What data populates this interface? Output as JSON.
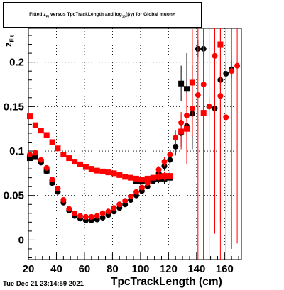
{
  "chart": {
    "title_part1": "Fitted  z",
    "title_sub1": "Pi",
    "title_part2": "  versus  TpcTrackLength and log",
    "title_sub2": "10",
    "title_part3": "(βγ) for Global muon+",
    "ylabel_main": "z",
    "ylabel_sub": "Fit",
    "xlabel": "TpcTrackLength (cm)",
    "timestamp": "Tue Dec 21 23:14:59 2021"
  },
  "chart_data": {
    "type": "scatter",
    "title": "Fitted z_Pi versus TpcTrackLength and log10(βγ) for Global muon+",
    "xlabel": "TpcTrackLength (cm)",
    "ylabel": "z_Fit",
    "xlim": [
      20,
      172
    ],
    "ylim": [
      -0.022,
      0.238
    ],
    "grid": true,
    "x_ticks": [
      20,
      40,
      60,
      80,
      100,
      120,
      140,
      160
    ],
    "y_ticks": [
      0,
      0.05,
      0.1,
      0.15,
      0.2
    ],
    "x_tick_labels": [
      "20",
      "40",
      "60",
      "80",
      "100",
      "120",
      "140",
      "160"
    ],
    "y_tick_labels": [
      "0",
      "0.05",
      "0.1",
      "0.15",
      "0.2"
    ],
    "series": [
      {
        "marker": "circle",
        "color": "#000000",
        "points": [
          [
            21,
            0.093
          ],
          [
            25,
            0.096
          ],
          [
            29,
            0.087
          ],
          [
            33,
            0.077
          ],
          [
            37,
            0.064
          ],
          [
            41,
            0.054
          ],
          [
            45,
            0.042
          ],
          [
            49,
            0.033
          ],
          [
            53,
            0.027
          ],
          [
            57,
            0.024
          ],
          [
            61,
            0.022
          ],
          [
            65,
            0.022
          ],
          [
            69,
            0.023
          ],
          [
            73,
            0.025
          ],
          [
            77,
            0.028
          ],
          [
            81,
            0.032
          ],
          [
            85,
            0.036
          ],
          [
            89,
            0.04
          ],
          [
            93,
            0.045
          ],
          [
            97,
            0.05
          ],
          [
            101,
            0.055
          ],
          [
            105,
            0.06
          ],
          [
            109,
            0.066
          ],
          [
            113,
            0.075
          ],
          [
            117,
            0.083
          ],
          [
            121,
            0.09
          ],
          [
            125,
            0.105
          ],
          [
            129,
            0.12
          ],
          [
            133,
            0.128
          ],
          [
            137,
            0.142
          ],
          [
            141,
            0.215
          ],
          [
            145,
            0.215
          ],
          [
            149,
            0.15
          ],
          [
            153,
            0.148
          ],
          [
            157,
            0.18
          ],
          [
            161,
            0.187
          ],
          [
            165,
            0.192
          ]
        ],
        "errors": [
          0.002,
          0.002,
          0.002,
          0.002,
          0.002,
          0.002,
          0.002,
          0.001,
          0.001,
          0.001,
          0.001,
          0.001,
          0.001,
          0.001,
          0.001,
          0.001,
          0.002,
          0.002,
          0.002,
          0.002,
          0.002,
          0.002,
          0.003,
          0.004,
          0.005,
          0.007,
          0.01,
          0.015,
          0.03,
          0.04,
          0.01,
          0.01,
          0.01,
          0.01,
          0.01,
          0.012,
          0.01
        ]
      },
      {
        "marker": "square",
        "color": "#000000",
        "points": [
          [
            21,
            0.092
          ],
          [
            25,
            0.094
          ],
          [
            29,
            0.088
          ],
          [
            33,
            0.078
          ],
          [
            37,
            0.065
          ],
          [
            97,
            0.066
          ],
          [
            101,
            0.066
          ],
          [
            105,
            0.067
          ],
          [
            109,
            0.068
          ],
          [
            113,
            0.069
          ],
          [
            117,
            0.069
          ],
          [
            121,
            0.07
          ],
          [
            129,
            0.176
          ],
          [
            133,
            0.17
          ],
          [
            137,
            0.177
          ]
        ],
        "errors": [
          0.002,
          0.002,
          0.002,
          0.002,
          0.002,
          0.003,
          0.003,
          0.003,
          0.004,
          0.005,
          0.006,
          0.007,
          0.02,
          0.04,
          0.02
        ]
      },
      {
        "marker": "square",
        "color": "#ff0000",
        "points": [
          [
            21,
            0.139
          ],
          [
            25,
            0.129
          ],
          [
            29,
            0.123
          ],
          [
            33,
            0.118
          ],
          [
            37,
            0.11
          ],
          [
            41,
            0.103
          ],
          [
            45,
            0.096
          ],
          [
            49,
            0.092
          ],
          [
            53,
            0.088
          ],
          [
            57,
            0.085
          ],
          [
            61,
            0.082
          ],
          [
            65,
            0.08
          ],
          [
            69,
            0.078
          ],
          [
            73,
            0.077
          ],
          [
            77,
            0.076
          ],
          [
            81,
            0.075
          ],
          [
            85,
            0.073
          ],
          [
            89,
            0.071
          ],
          [
            93,
            0.07
          ],
          [
            97,
            0.069
          ],
          [
            101,
            0.068
          ],
          [
            105,
            0.069
          ],
          [
            109,
            0.07
          ],
          [
            113,
            0.071
          ],
          [
            117,
            0.072
          ],
          [
            121,
            0.072
          ],
          [
            129,
            0.122
          ],
          [
            133,
            0.125
          ],
          [
            137,
            0.177
          ],
          [
            145,
            0.143
          ],
          [
            157,
            0.22
          ]
        ],
        "errors": [
          0.002,
          0.002,
          0.002,
          0.002,
          0.002,
          0.002,
          0.002,
          0.002,
          0.002,
          0.002,
          0.002,
          0.002,
          0.002,
          0.002,
          0.002,
          0.002,
          0.002,
          0.002,
          0.002,
          0.002,
          0.003,
          0.003,
          0.003,
          0.004,
          0.005,
          0.007,
          0.02,
          0.04,
          0.06,
          0.2,
          0.2
        ]
      },
      {
        "marker": "circle",
        "color": "#ff0000",
        "points": [
          [
            21,
            0.096
          ],
          [
            25,
            0.098
          ],
          [
            29,
            0.09
          ],
          [
            33,
            0.081
          ],
          [
            37,
            0.068
          ],
          [
            41,
            0.058
          ],
          [
            45,
            0.045
          ],
          [
            49,
            0.035
          ],
          [
            53,
            0.03
          ],
          [
            57,
            0.027
          ],
          [
            61,
            0.026
          ],
          [
            65,
            0.026
          ],
          [
            69,
            0.027
          ],
          [
            73,
            0.03
          ],
          [
            77,
            0.032
          ],
          [
            81,
            0.036
          ],
          [
            85,
            0.04
          ],
          [
            89,
            0.044
          ],
          [
            93,
            0.049
          ],
          [
            97,
            0.054
          ],
          [
            101,
            0.059
          ],
          [
            105,
            0.064
          ],
          [
            109,
            0.07
          ],
          [
            113,
            0.079
          ],
          [
            117,
            0.088
          ],
          [
            121,
            0.096
          ],
          [
            125,
            0.115
          ],
          [
            129,
            0.132
          ],
          [
            133,
            0.14
          ],
          [
            137,
            0.148
          ],
          [
            141,
            0.163
          ],
          [
            145,
            0.175
          ],
          [
            149,
            0.15
          ],
          [
            153,
            0.207
          ],
          [
            157,
            0.162
          ],
          [
            161,
            0.138
          ],
          [
            165,
            0.19
          ],
          [
            169,
            0.196
          ]
        ],
        "errors": [
          0.002,
          0.002,
          0.002,
          0.002,
          0.002,
          0.002,
          0.002,
          0.002,
          0.002,
          0.002,
          0.002,
          0.002,
          0.002,
          0.002,
          0.002,
          0.002,
          0.002,
          0.002,
          0.002,
          0.002,
          0.002,
          0.003,
          0.003,
          0.004,
          0.005,
          0.006,
          0.008,
          0.012,
          0.02,
          0.03,
          0.2,
          0.2,
          0.2,
          0.2,
          0.2,
          0.2,
          0.2,
          0.2
        ]
      }
    ]
  }
}
